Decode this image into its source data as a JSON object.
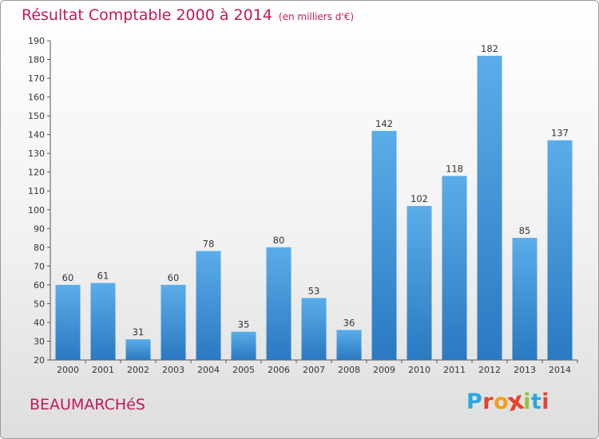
{
  "header": {
    "title": "Résultat Comptable 2000 à 2014",
    "subtitle": "(en milliers d'€)"
  },
  "footer": {
    "commune": "BEAUMARCHéS",
    "logo_letters": [
      "P",
      "r",
      "o",
      "x",
      "i",
      "t",
      "i"
    ],
    "logo_colors": [
      "#2aa7de",
      "#e8412c",
      "#f6a01a",
      "#e8412c",
      "#8cc63f",
      "#2aa7de",
      "#e8412c"
    ]
  },
  "chart_data": {
    "type": "bar",
    "title": "Résultat Comptable 2000 à 2014",
    "ylabel": "(en milliers d'€)",
    "xlabel": "",
    "categories": [
      "2000",
      "2001",
      "2002",
      "2003",
      "2004",
      "2005",
      "2006",
      "2007",
      "2008",
      "2009",
      "2010",
      "2011",
      "2012",
      "2013",
      "2014"
    ],
    "values": [
      60,
      61,
      31,
      60,
      78,
      35,
      80,
      53,
      36,
      142,
      102,
      118,
      182,
      85,
      137
    ],
    "ylim": [
      20,
      190
    ],
    "yticks": [
      20,
      30,
      40,
      50,
      60,
      70,
      80,
      90,
      100,
      110,
      120,
      130,
      140,
      150,
      160,
      170,
      180,
      190
    ],
    "grid": false,
    "bar_color": "#3a8fd6"
  }
}
